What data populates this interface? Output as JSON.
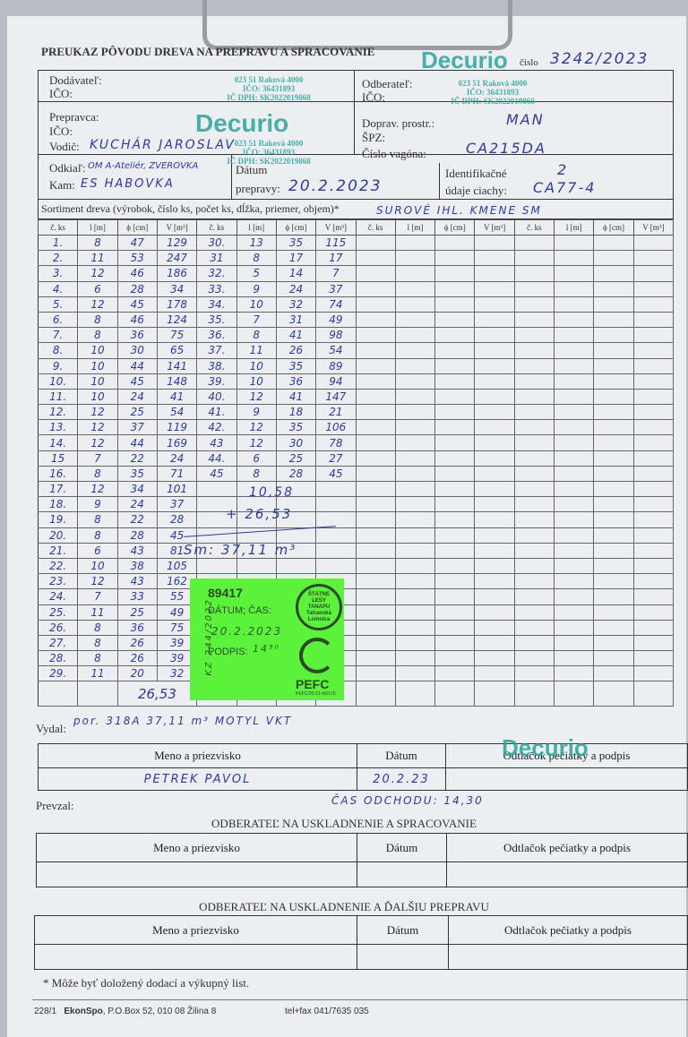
{
  "form": {
    "title": "PREUKAZ PÔVODU DREVA NA PREPRAVU A SPRACOVANIE",
    "cislo_label": "číslo",
    "cislo_value": "3242/2023",
    "brand": "Decurio",
    "stamp_lines": [
      "023 51 Raková 4000",
      "IČO: 36431893",
      "IČ DPH: SK2022019868"
    ],
    "dodavatel_label": "Dodávateľ:",
    "ico_label": "IČO:",
    "odberatel_label": "Odberateľ:",
    "prepravca_label": "Prepravca:",
    "vodic_label": "Vodič:",
    "vodic_value": "KUCHÁR JAROSLAV",
    "doprav_label": "Doprav. prostr.:",
    "doprav_value": "MAN",
    "spz_label": "ŠPZ:",
    "vagon_label": "Číslo vagóna:",
    "vagon_value": "CA215DA",
    "odkial_label": "Odkiaľ:",
    "odkial_value": "OM A-Ateliér, ZVEROVKA",
    "kam_label": "Kam:",
    "kam_value": "ES HABOVKA",
    "datum_label": "Dátum",
    "prepravy_label": "prepravy:",
    "prepravy_value": "20.2.2023",
    "ident_label1": "Identifikačné",
    "ident_label2": "údaje ciachy:",
    "ident_value1": "2",
    "ident_value2": "CA77-4",
    "sortiment_label": "Sortiment dreva (výrobok, číslo ks, počet ks, dĺžka, priemer, objem)*",
    "sortiment_value": "SUROVÉ IHL. KMENE SM"
  },
  "table": {
    "headers": [
      "č. ks",
      "l [m]",
      "ϕ [cm]",
      "V [m³]"
    ],
    "rows": [
      [
        "1.",
        "8",
        "47",
        "129",
        "30.",
        "13",
        "35",
        "115"
      ],
      [
        "2.",
        "11",
        "53",
        "247",
        "31",
        "8",
        "17",
        "17"
      ],
      [
        "3.",
        "12",
        "46",
        "186",
        "32.",
        "5",
        "14",
        "7"
      ],
      [
        "4.",
        "6",
        "28",
        "34",
        "33.",
        "9",
        "24",
        "37"
      ],
      [
        "5.",
        "12",
        "45",
        "178",
        "34.",
        "10",
        "32",
        "74"
      ],
      [
        "6.",
        "8",
        "46",
        "124",
        "35.",
        "7",
        "31",
        "49"
      ],
      [
        "7.",
        "8",
        "36",
        "75",
        "36.",
        "8",
        "41",
        "98"
      ],
      [
        "8.",
        "10",
        "30",
        "65",
        "37.",
        "11",
        "26",
        "54"
      ],
      [
        "9.",
        "10",
        "44",
        "141",
        "38.",
        "10",
        "35",
        "89"
      ],
      [
        "10.",
        "10",
        "45",
        "148",
        "39.",
        "10",
        "36",
        "94"
      ],
      [
        "11.",
        "10",
        "24",
        "41",
        "40.",
        "12",
        "41",
        "147"
      ],
      [
        "12.",
        "12",
        "25",
        "54",
        "41.",
        "9",
        "18",
        "21"
      ],
      [
        "13.",
        "12",
        "37",
        "119",
        "42.",
        "12",
        "35",
        "106"
      ],
      [
        "14.",
        "12",
        "44",
        "169",
        "43",
        "12",
        "30",
        "78"
      ],
      [
        "15",
        "7",
        "22",
        "24",
        "44.",
        "6",
        "25",
        "27"
      ],
      [
        "16.",
        "8",
        "35",
        "71",
        "45",
        "8",
        "28",
        "45"
      ],
      [
        "17.",
        "12",
        "34",
        "101",
        "",
        "",
        "",
        ""
      ],
      [
        "18.",
        "9",
        "24",
        "37",
        "",
        "",
        "",
        ""
      ],
      [
        "19.",
        "8",
        "22",
        "28",
        "",
        "",
        "",
        ""
      ],
      [
        "20.",
        "8",
        "28",
        "45",
        "",
        "",
        "",
        ""
      ],
      [
        "21.",
        "6",
        "43",
        "81",
        "",
        "",
        "",
        ""
      ],
      [
        "22.",
        "10",
        "38",
        "105",
        "",
        "",
        "",
        ""
      ],
      [
        "23.",
        "12",
        "43",
        "162",
        "",
        "",
        "",
        ""
      ],
      [
        "24.",
        "7",
        "33",
        "55",
        "",
        "",
        "",
        ""
      ],
      [
        "25.",
        "11",
        "25",
        "49",
        "",
        "",
        "",
        ""
      ],
      [
        "26.",
        "8",
        "36",
        "75",
        "",
        "",
        "",
        ""
      ],
      [
        "27.",
        "8",
        "26",
        "39",
        "",
        "",
        "",
        ""
      ],
      [
        "28.",
        "8",
        "26",
        "39",
        "",
        "",
        "",
        ""
      ],
      [
        "29.",
        "11",
        "20",
        "32",
        "",
        "",
        "",
        ""
      ]
    ],
    "sum_value": "26,53",
    "note_a": "10,58",
    "note_b": "+ 26,53",
    "note_total": "Sm: 37,11 m³"
  },
  "sticker": {
    "number": "89417",
    "datum_label": "DÁTUM; ČAS:",
    "datum_value": "20.2.2023",
    "podpis_label": "PODPIS:",
    "podpis_value": "14³⁰",
    "side_text": "KZ 244/2022",
    "logo1_text": "ŠTÁTNE LESY TANAPU Tatranská Lomnica",
    "logo2_text": "PEFC",
    "pefc_code": "PEFC/20-21-40/170",
    "color": "#5cf23c"
  },
  "vydal": {
    "label": "Vydal:",
    "value": "por. 318A 37,11 m³ MOTYL VKT",
    "col_name": "Meno a priezvisko",
    "col_date": "Dátum",
    "col_stamp": "Odtlačok pečiatky a podpis",
    "name_value": "PETREK PAVOL",
    "date_value": "20.2.23"
  },
  "prevzal": {
    "label": "Prevzal:",
    "note": "ČAS ODCHODU: 14,30"
  },
  "section1": {
    "title": "ODBERATEĽ NA USKLADNENIE A SPRACOVANIE",
    "col_name": "Meno a priezvisko",
    "col_date": "Dátum",
    "col_stamp": "Odtlačok pečiatky a podpis"
  },
  "section2": {
    "title": "ODBERATEĽ NA USKLADNENIE A ĎALŠIU PREPRAVU",
    "col_name": "Meno a priezvisko",
    "col_date": "Dátum",
    "col_stamp": "Odtlačok pečiatky a podpis"
  },
  "footer": {
    "footnote": "* Môže byť doložený dodací a výkupný list.",
    "form_no": "228/1",
    "publisher": "EkonSpo",
    "address": ", P.O.Box 52, 010 08 Žilina 8",
    "phone": "tel+fax 041/7635 035"
  },
  "colors": {
    "ink": "#2d3c9c",
    "stamp": "#2aa59a",
    "sticker": "#5cf23c"
  }
}
